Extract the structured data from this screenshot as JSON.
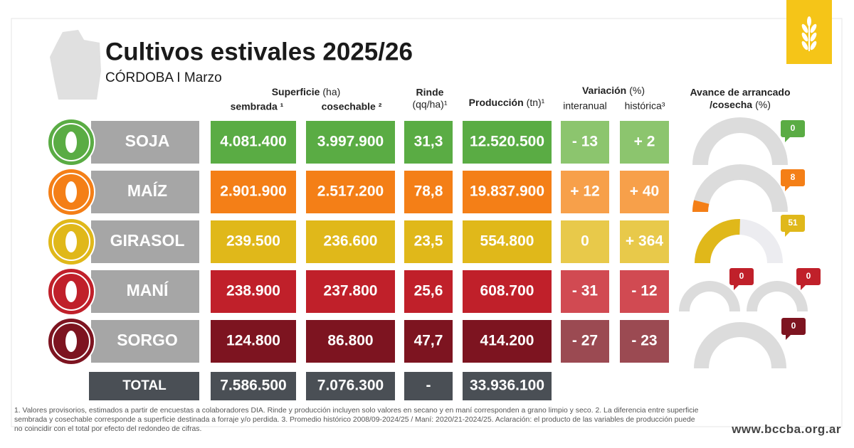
{
  "header": {
    "title": "Cultivos estivales 2025/26",
    "subtitle": "CÓRDOBA I Marzo"
  },
  "columns": {
    "superficie": "Superficie",
    "superficie_unit": "(ha)",
    "sembrada": "sembrada ¹",
    "cosechable": "cosechable ²",
    "rinde": "Rinde",
    "rinde_unit": "(qq/ha)¹",
    "produccion": "Producción",
    "produccion_unit": "(tn)¹",
    "variacion": "Variación",
    "variacion_unit": "(%)",
    "interanual": "interanual",
    "historica": "histórica³",
    "avance": "Avance de arrancado",
    "avance_2": "/cosecha",
    "avance_unit": "(%)"
  },
  "rows": [
    {
      "name": "SOJA",
      "sembrada": "4.081.400",
      "cosechable": "3.997.900",
      "rinde": "31,3",
      "produccion": "12.520.500",
      "interanual": "- 13",
      "historica": "+ 2",
      "avance": [
        0
      ],
      "color": "#5aac44",
      "light": "#8cc56e"
    },
    {
      "name": "MAÍZ",
      "sembrada": "2.901.900",
      "cosechable": "2.517.200",
      "rinde": "78,8",
      "produccion": "19.837.900",
      "interanual": "+ 12",
      "historica": "+ 40",
      "avance": [
        8
      ],
      "color": "#f47f17",
      "light": "#f7a04a"
    },
    {
      "name": "GIRASOL",
      "sembrada": "239.500",
      "cosechable": "236.600",
      "rinde": "23,5",
      "produccion": "554.800",
      "interanual": "0",
      "historica": "+ 364",
      "avance": [
        51
      ],
      "color": "#e0b81a",
      "light": "#e8c94a"
    },
    {
      "name": "MANÍ",
      "sembrada": "238.900",
      "cosechable": "237.800",
      "rinde": "25,6",
      "produccion": "608.700",
      "interanual": "- 31",
      "historica": "- 12",
      "avance": [
        0,
        0
      ],
      "color": "#c0202a",
      "light": "#d14a52"
    },
    {
      "name": "SORGO",
      "sembrada": "124.800",
      "cosechable": "86.800",
      "rinde": "47,7",
      "produccion": "414.200",
      "interanual": "- 27",
      "historica": "- 23",
      "avance": [
        0
      ],
      "color": "#7d1420",
      "light": "#9b4a52"
    }
  ],
  "total": {
    "name": "TOTAL",
    "sembrada": "7.586.500",
    "cosechable": "7.076.300",
    "rinde": "-",
    "produccion": "33.936.100",
    "color": "#4a4f55"
  },
  "footnote": "1. Valores provisorios, estimados a partir de encuestas a colaboradores DIA. Rinde y producción incluyen solo valores en secano y en maní corresponden a grano limpio y seco. 2. La diferencia entre superficie sembrada y cosechable corresponde a superficie destinada a forraje y/o perdida. 3. Promedio histórico 2008/09-2024/25 / Maní: 2020/21-2024/25. Aclaración: el producto de las variables de producción puede no coincidir con el total por efecto del redondeo de cifras.",
  "website": "www.bccba.org.ar"
}
